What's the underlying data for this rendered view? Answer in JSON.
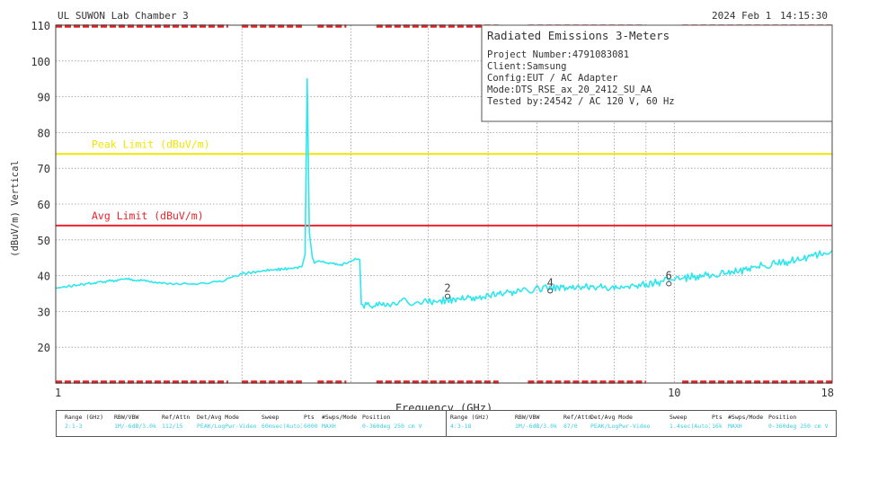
{
  "header": {
    "lab": "UL SUWON Lab Chamber 3",
    "date": "2024 Feb 1",
    "time": "14:15:30"
  },
  "infobox": {
    "title": "Radiated Emissions 3-Meters",
    "lines": [
      "Project Number:4791083081",
      "Client:Samsung",
      "Config:EUT / AC Adapter",
      "Mode:DTS_RSE_ax_20_2412_SU_AA",
      "Tested by:24542 / AC 120 V, 60 Hz"
    ]
  },
  "chart_data": {
    "type": "line",
    "xlabel": "Frequency (GHz)",
    "ylabel": "(dBuV/m) Vertical",
    "xscale": "log",
    "xlim": [
      1,
      18
    ],
    "ylim": [
      10,
      110
    ],
    "x_tick_labels": [
      "1",
      "10",
      "18"
    ],
    "y_ticks": [
      10,
      20,
      30,
      40,
      50,
      60,
      70,
      80,
      90,
      100,
      110
    ],
    "y_tick_labels": [
      "",
      "20",
      "30",
      "40",
      "50",
      "60",
      "70",
      "80",
      "90",
      "100",
      "110"
    ],
    "grid": true,
    "limits": [
      {
        "name": "Peak Limit (dBuV/m)",
        "value": 74,
        "color": "#f2e600"
      },
      {
        "name": "Avg Limit (dBuV/m)",
        "value": 54,
        "color": "#e8252b"
      }
    ],
    "series": [
      {
        "color": "#2ee6ee",
        "x": [
          1.0,
          1.15,
          1.3,
          1.5,
          1.7,
          1.85,
          2.0,
          2.2,
          2.4,
          2.5,
          2.53,
          2.55,
          2.57,
          2.6,
          2.62,
          2.65,
          2.75,
          2.9,
          3.05,
          3.1,
          3.12,
          3.3,
          3.6,
          4.0,
          4.5,
          5.0,
          5.5,
          6.2,
          7.0,
          8.0,
          9.0,
          10.0,
          11.0,
          12.5,
          14.0,
          16.0,
          18.0
        ],
        "y": [
          36.5,
          38.0,
          39.0,
          38.0,
          37.5,
          38.5,
          40.5,
          41.5,
          42.0,
          42.5,
          46.0,
          95.0,
          52.0,
          45.0,
          43.5,
          44.0,
          43.5,
          43.0,
          44.5,
          44.5,
          32.0,
          31.5,
          33.0,
          32.5,
          33.5,
          34.5,
          35.5,
          36.5,
          37.0,
          36.5,
          37.5,
          39.0,
          40.0,
          41.0,
          43.0,
          44.5,
          47.0
        ]
      }
    ],
    "markers": [
      {
        "label": "2",
        "x": 4.3,
        "y": 35.0
      },
      {
        "label": "4",
        "x": 6.3,
        "y": 36.5
      },
      {
        "label": "6",
        "x": 9.8,
        "y": 38.5
      }
    ]
  },
  "settings": [
    {
      "headers": [
        "Range (GHz)",
        "RBW/VBW",
        "Ref/Attn",
        "Det/Avg Mode",
        "Sweep",
        "Pts",
        "#Swps/Mode",
        "Position"
      ],
      "values": [
        "2:1-3",
        "1M/-6dB/3.0k",
        "112/15",
        "PEAK/LogPwr-Video",
        "60msec(Auto)",
        "6000",
        "MAXH",
        "0-360deg 250 cm V"
      ]
    },
    {
      "headers": [
        "Range (GHz)",
        "RBW/VBW",
        "Ref/Attn",
        "Det/Avg Mode",
        "Sweep",
        "Pts",
        "#Swps/Mode",
        "Position"
      ],
      "values": [
        "4:3-18",
        "1M/-6dB/3.0k",
        "87/0",
        "PEAK/LogPwr-Video",
        "1.4sec(Auto)",
        "16k",
        "MAXH",
        "0-360deg 250 cm V"
      ]
    }
  ]
}
